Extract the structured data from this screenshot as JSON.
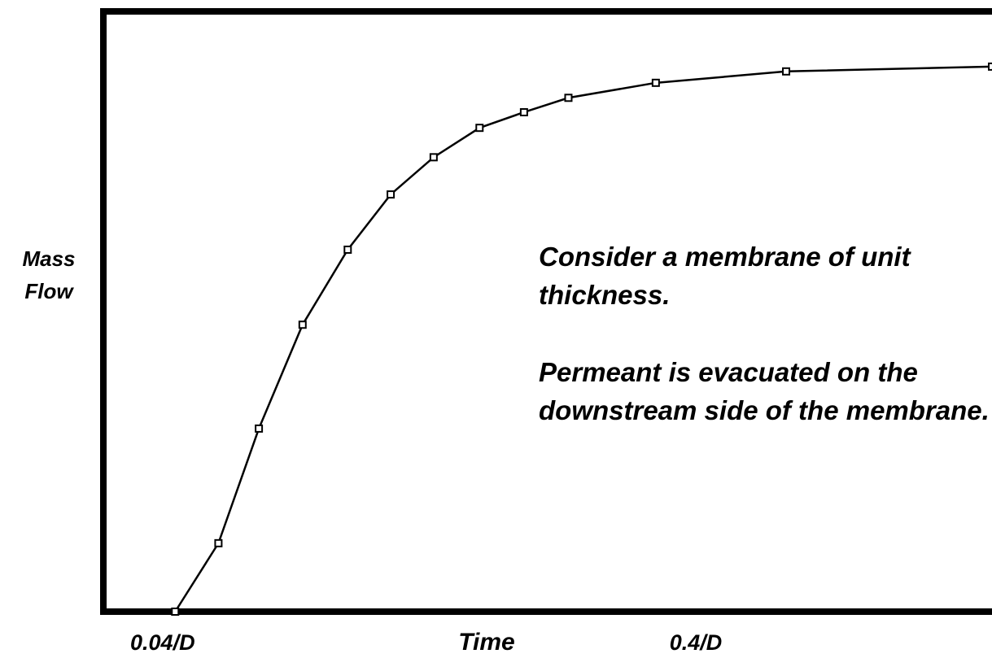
{
  "chart_data": {
    "type": "line",
    "x_label": "Time",
    "y_label": "Mass Flow",
    "annotations": [
      "Consider a membrane of unit thickness.",
      "Permeant is evacuated on the downstream side of the membrane."
    ],
    "xlim": [
      0,
      0.6
    ],
    "xticks": [
      {
        "value": 0.04,
        "label": "0.04/D"
      },
      {
        "value": 0.4,
        "label": "0.4/D"
      }
    ],
    "ylim": [
      0,
      1
    ],
    "series": [
      {
        "color": "#000000",
        "x": [
          0.0485,
          0.0777,
          0.105,
          0.1345,
          0.165,
          0.194,
          0.223,
          0.254,
          0.284,
          0.314,
          0.373,
          0.461,
          0.6
        ],
        "values": [
          0,
          0.114,
          0.305,
          0.478,
          0.603,
          0.695,
          0.757,
          0.806,
          0.832,
          0.856,
          0.881,
          0.9,
          0.908
        ]
      }
    ]
  }
}
